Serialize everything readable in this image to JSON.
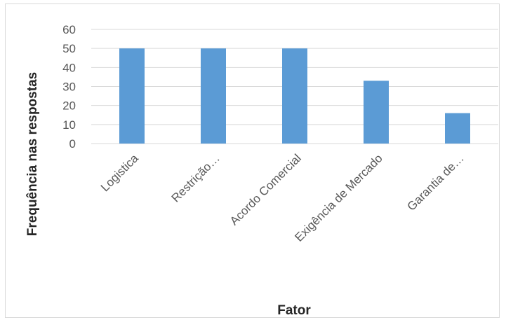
{
  "chart_data": {
    "type": "bar",
    "categories": [
      "Logistica",
      "Restrição…",
      "Acordo Comercial",
      "Exigência de Mercado",
      "Garantia de…"
    ],
    "values": [
      50,
      50,
      50,
      33,
      16
    ],
    "xlabel": "Fator",
    "ylabel": "Frequência nas respostas",
    "ylim": [
      0,
      60
    ],
    "yticks": [
      0,
      10,
      20,
      30,
      40,
      50,
      60
    ],
    "grid": true,
    "legend": "none",
    "bar_color": "#5b9bd5",
    "grid_color": "#d9d9d9"
  }
}
